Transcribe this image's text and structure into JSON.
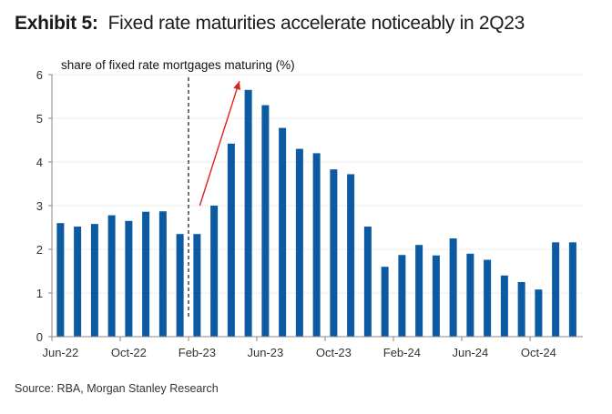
{
  "header": {
    "exhibit": "Exhibit 5:",
    "title": "Fixed rate maturities accelerate noticeably in 2Q23"
  },
  "source": "Source: RBA, Morgan Stanley Research",
  "chart_data": {
    "type": "bar",
    "title": "Fixed rate maturities accelerate noticeably in 2Q23",
    "ylabel": "share of fixed rate mortgages maturing (%)",
    "xlabel": "",
    "ylim": [
      0,
      6
    ],
    "yticks": [
      "0",
      "1",
      "2",
      "3",
      "4",
      "5",
      "6"
    ],
    "xtick_labels": [
      "Jun-22",
      "Oct-22",
      "Feb-23",
      "Jun-23",
      "Oct-23",
      "Feb-24",
      "Jun-24",
      "Oct-24"
    ],
    "categories": [
      "Jun-22",
      "Jul-22",
      "Aug-22",
      "Sep-22",
      "Oct-22",
      "Nov-22",
      "Dec-22",
      "Jan-23",
      "Feb-23",
      "Mar-23",
      "Apr-23",
      "May-23",
      "Jun-23",
      "Jul-23",
      "Aug-23",
      "Sep-23",
      "Oct-23",
      "Nov-23",
      "Dec-23",
      "Jan-24",
      "Feb-24",
      "Mar-24",
      "Apr-24",
      "May-24",
      "Jun-24",
      "Jul-24",
      "Aug-24",
      "Sep-24",
      "Oct-24",
      "Nov-24",
      "Dec-24"
    ],
    "values": [
      2.6,
      2.52,
      2.58,
      2.78,
      2.65,
      2.86,
      2.87,
      2.35,
      2.35,
      3.0,
      4.42,
      5.65,
      5.3,
      4.78,
      4.3,
      4.2,
      3.83,
      3.72,
      2.52,
      1.6,
      1.87,
      2.1,
      1.86,
      2.25,
      1.9,
      1.76,
      1.4,
      1.25,
      1.08,
      2.16,
      2.16
    ],
    "bar_color": "#0b5aa2",
    "grid": true,
    "annotations": [
      {
        "type": "vline-dashed",
        "between": [
          "Jan-23",
          "Feb-23"
        ]
      },
      {
        "type": "arrow",
        "color": "#e02020",
        "from": [
          "Feb-23",
          3.0
        ],
        "to": [
          "Apr-23",
          5.8
        ]
      }
    ]
  }
}
